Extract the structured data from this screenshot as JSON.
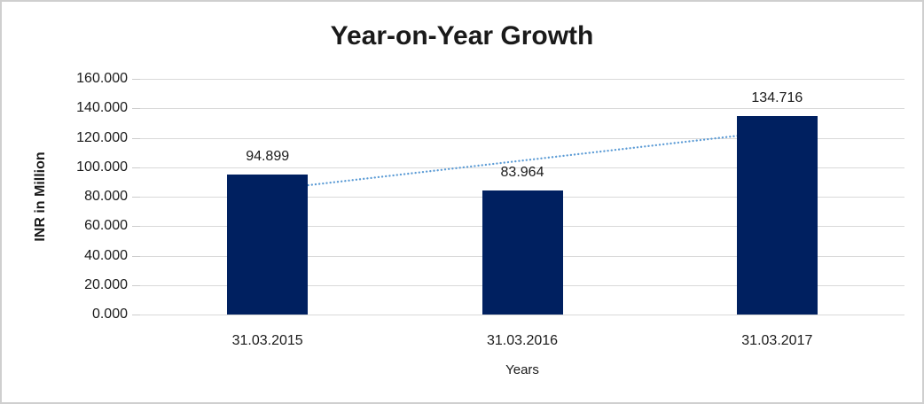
{
  "chart_data": {
    "type": "bar",
    "title": "Year-on-Year Growth",
    "categories": [
      "31.03.2015",
      "31.03.2016",
      "31.03.2017"
    ],
    "values": [
      94.899,
      83.964,
      134.716
    ],
    "data_labels": [
      "94.899",
      "83.964",
      "134.716"
    ],
    "xlabel": "Years",
    "ylabel": "INR in Million",
    "ylim": [
      0,
      160
    ],
    "ytick_labels": [
      "0.000",
      "20.000",
      "40.000",
      "60.000",
      "80.000",
      "100.000",
      "120.000",
      "140.000",
      "160.000"
    ],
    "grid": true,
    "legend_position": "none",
    "bar_color": "#002060",
    "gridline_color": "#d9d9d9",
    "trendline": {
      "type": "linear",
      "style": "dotted",
      "color": "#5b9bd5"
    }
  }
}
